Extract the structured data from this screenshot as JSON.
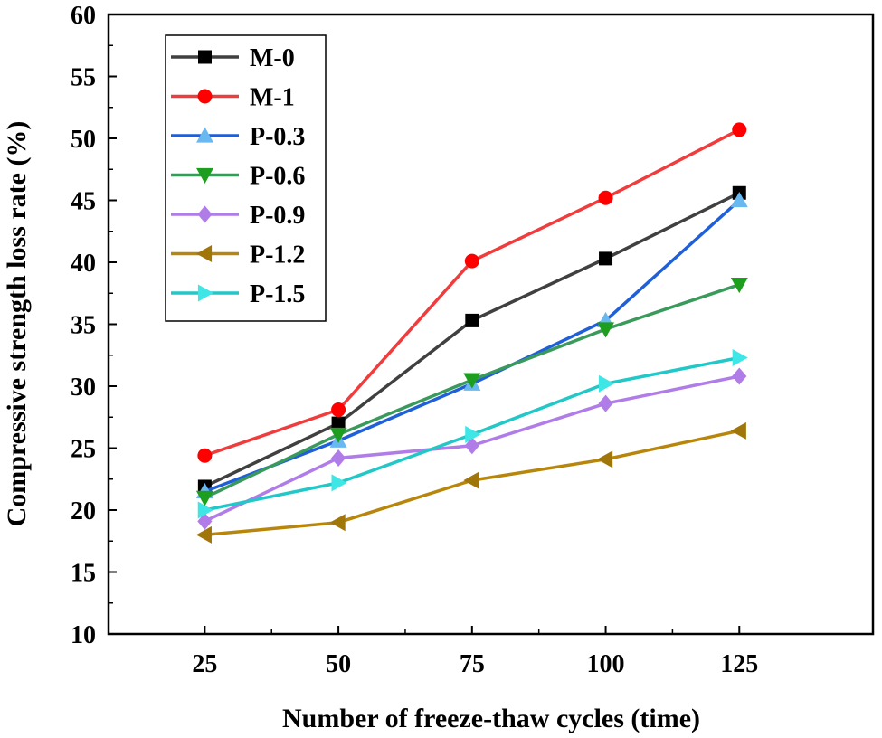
{
  "chart_data": {
    "type": "line",
    "title": "",
    "xlabel": "Number of freeze-thaw cycles (time)",
    "ylabel": "Compressive strength loss rate (%)",
    "x": [
      25,
      50,
      75,
      100,
      125
    ],
    "xlim": [
      7,
      150
    ],
    "ylim": [
      10,
      60
    ],
    "xticks": [
      25,
      50,
      75,
      100,
      125
    ],
    "yticks": [
      10,
      15,
      20,
      25,
      30,
      35,
      40,
      45,
      50,
      55,
      60
    ],
    "grid": false,
    "legend_position": "top-left",
    "series": [
      {
        "name": "M-0",
        "color": "#404040",
        "marker": "square",
        "marker_color": "#000000",
        "values": [
          21.9,
          27.0,
          35.3,
          40.3,
          45.6
        ]
      },
      {
        "name": "M-1",
        "color": "#f03c3c",
        "marker": "circle",
        "marker_color": "#ff0000",
        "values": [
          24.4,
          28.1,
          40.1,
          45.2,
          50.7
        ]
      },
      {
        "name": "P-0.3",
        "color": "#1f5fd8",
        "marker": "triangle-up",
        "marker_color": "#6ab8f0",
        "values": [
          21.5,
          25.6,
          30.2,
          35.3,
          45.0
        ]
      },
      {
        "name": "P-0.6",
        "color": "#3a9a5c",
        "marker": "triangle-down",
        "marker_color": "#1e9e1e",
        "values": [
          21.0,
          26.1,
          30.5,
          34.6,
          38.2
        ]
      },
      {
        "name": "P-0.9",
        "color": "#b07ce8",
        "marker": "diamond",
        "marker_color": "#b07ce8",
        "values": [
          19.1,
          24.2,
          25.2,
          28.6,
          30.8
        ]
      },
      {
        "name": "P-1.2",
        "color": "#b8860b",
        "marker": "triangle-left",
        "marker_color": "#a0760b",
        "values": [
          18.0,
          19.0,
          22.4,
          24.1,
          26.4
        ]
      },
      {
        "name": "P-1.5",
        "color": "#22c7c7",
        "marker": "triangle-right",
        "marker_color": "#3ee6e6",
        "values": [
          20.0,
          22.2,
          26.1,
          30.2,
          32.3
        ]
      }
    ]
  }
}
